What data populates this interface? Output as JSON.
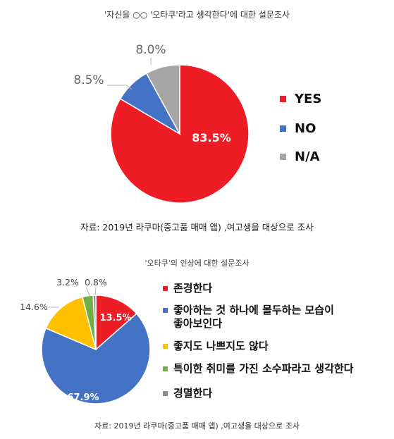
{
  "chart_data": [
    {
      "type": "pie",
      "title": "'자신을 ○○ '오타쿠'라고 생각한다'에 대한 설문조사",
      "slices": [
        {
          "label": "YES",
          "value": 83.5,
          "display": "83.5%",
          "color": "#ee1c25"
        },
        {
          "label": "NO",
          "value": 8.5,
          "display": "8.5%",
          "color": "#4472c4"
        },
        {
          "label": "N/A",
          "value": 8.0,
          "display": "8.0%",
          "color": "#a5a5a5"
        }
      ],
      "source": "자료: 2019년 라쿠마(중고품 매매 앱) ,여고생을 대상으로 조사",
      "legend_position": "right"
    },
    {
      "type": "pie",
      "title": "'오타쿠'의 인상에 대한 설문조사",
      "slices": [
        {
          "label": "존경한다",
          "value": 13.5,
          "display": "13.5%",
          "color": "#ee1c25"
        },
        {
          "label": "좋아하는 것 하나에 몰두하는 모습이 좋아보인다",
          "label_lines": [
            "좋아하는 것 하나에 몰두하는 모습이",
            "좋아보인다"
          ],
          "value": 67.9,
          "display": "67.9%",
          "color": "#4472c4"
        },
        {
          "label": "좋지도 나쁘지도 않다",
          "value": 14.6,
          "display": "14.6%",
          "color": "#ffc000"
        },
        {
          "label": "특이한 취미를 가진 소수파라고 생각한다",
          "value": 3.2,
          "display": "3.2%",
          "color": "#70ad47"
        },
        {
          "label": "경멸한다",
          "value": 0.8,
          "display": "0.8%",
          "color": "#8c8c8c"
        }
      ],
      "source": "자료: 2019년 라쿠마(중고품 매매 앱) ,여고생을 대상으로 조사",
      "legend_position": "right"
    }
  ]
}
